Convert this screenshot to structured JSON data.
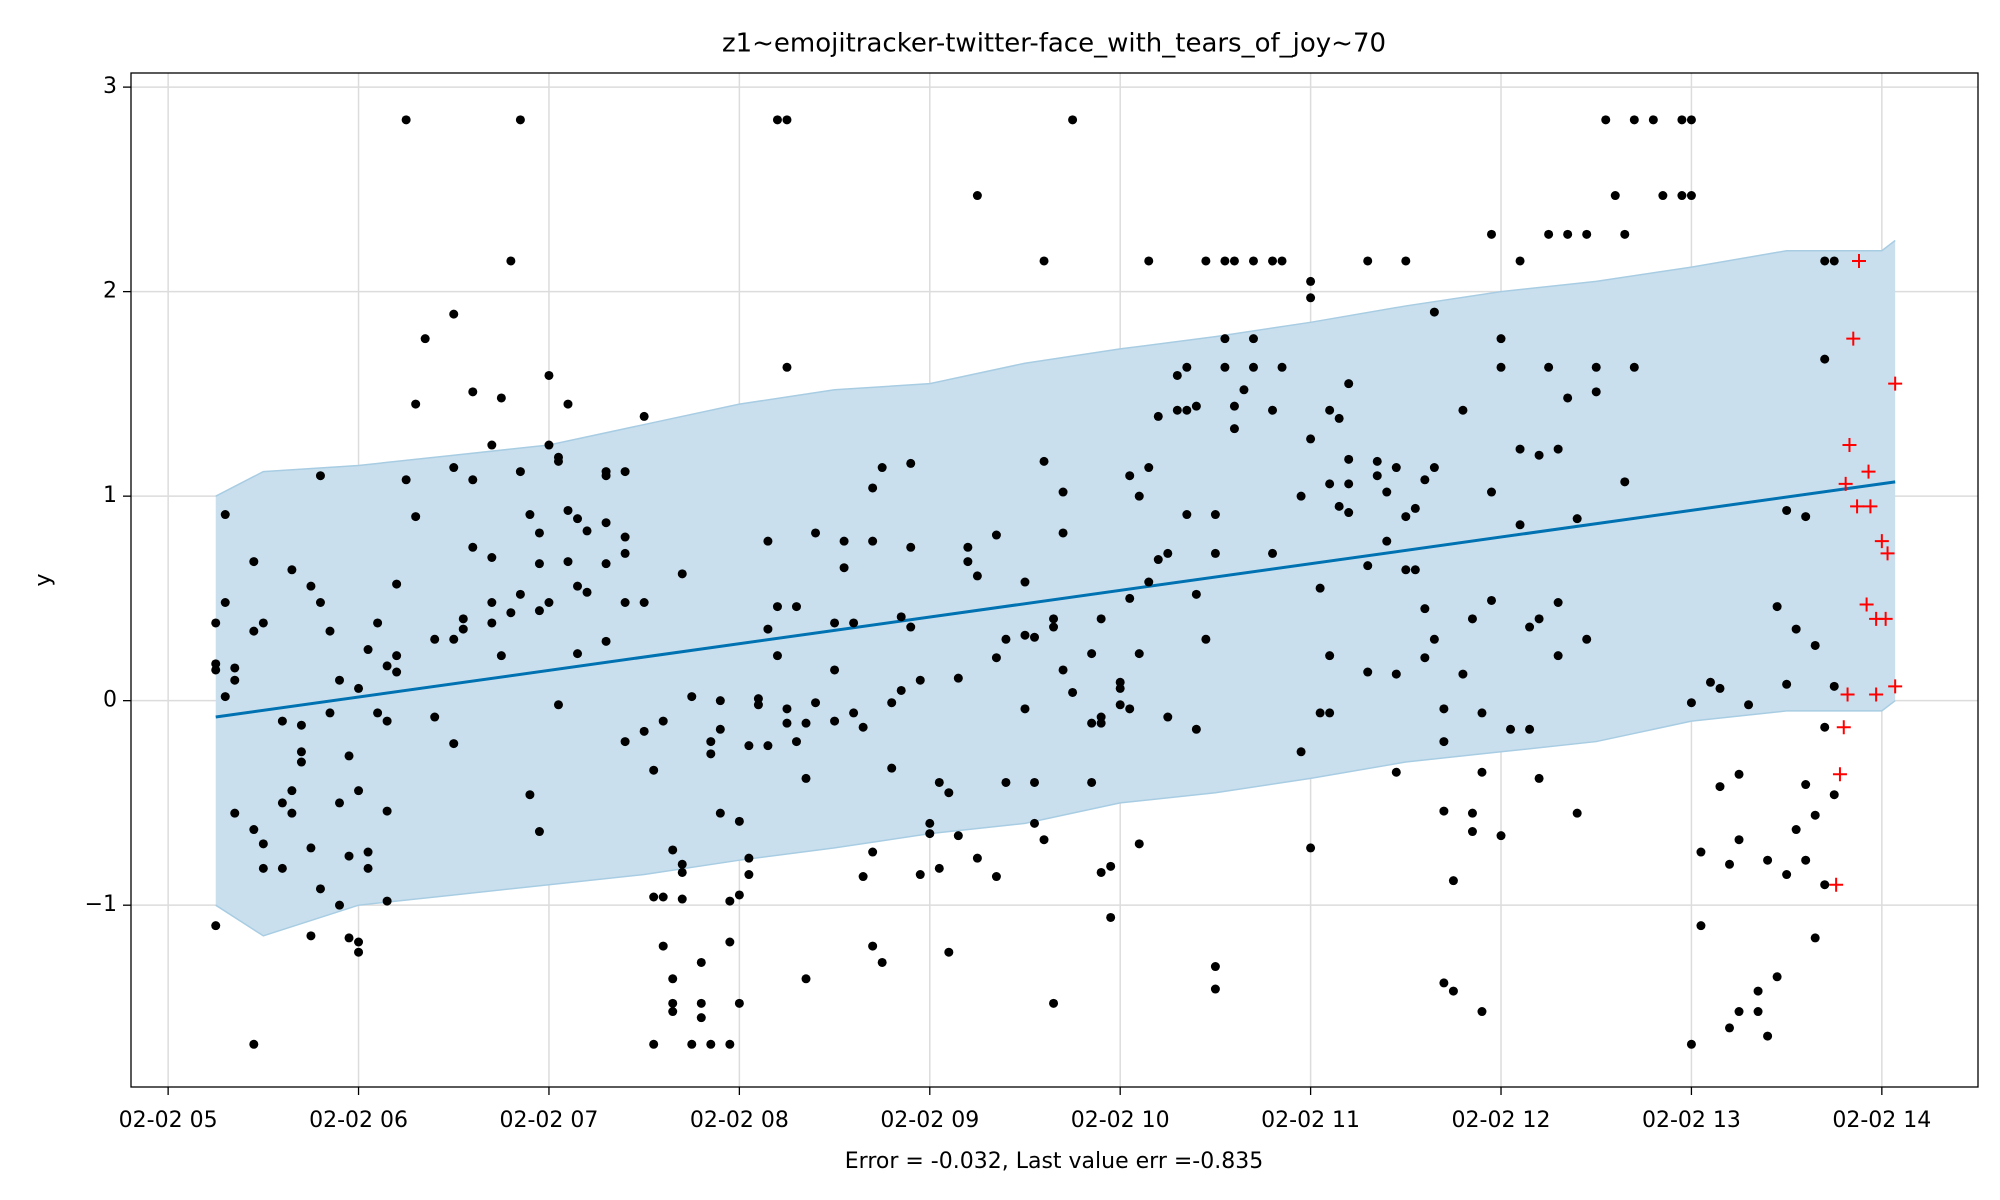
{
  "chart_data": {
    "type": "scatter",
    "title": "z1~emojitracker-twitter-face_with_tears_of_joy~70",
    "x_label": "Error = -0.032, Last value err =-0.835",
    "y_label": "y",
    "xlim": [
      4.805,
      14.505
    ],
    "ylim": [
      -1.889,
      3.069
    ],
    "xticks": [
      {
        "value": 5,
        "label": "02-02 05"
      },
      {
        "value": 6,
        "label": "02-02 06"
      },
      {
        "value": 7,
        "label": "02-02 07"
      },
      {
        "value": 8,
        "label": "02-02 08"
      },
      {
        "value": 9,
        "label": "02-02 09"
      },
      {
        "value": 10,
        "label": "02-02 10"
      },
      {
        "value": 11,
        "label": "02-02 11"
      },
      {
        "value": 12,
        "label": "02-02 12"
      },
      {
        "value": 13,
        "label": "02-02 13"
      },
      {
        "value": 14,
        "label": "02-02 14"
      }
    ],
    "yticks": [
      {
        "value": -1,
        "label": "−1"
      },
      0,
      1,
      2,
      3
    ],
    "grid": true,
    "band": {
      "color": "#c9dfee",
      "edge_color": "#a8cde3",
      "x": [
        5.25,
        5.5,
        6,
        6.5,
        7,
        7.5,
        8,
        8.5,
        9,
        9.5,
        10,
        10.5,
        11,
        11.5,
        12,
        12.5,
        13,
        13.5,
        14,
        14.07
      ],
      "upper": [
        1.0,
        1.12,
        1.15,
        1.2,
        1.25,
        1.35,
        1.45,
        1.52,
        1.55,
        1.65,
        1.72,
        1.78,
        1.85,
        1.93,
        2.0,
        2.05,
        2.12,
        2.2,
        2.2,
        2.25
      ],
      "lower": [
        -1.0,
        -1.15,
        -1.0,
        -0.95,
        -0.9,
        -0.85,
        -0.78,
        -0.72,
        -0.65,
        -0.6,
        -0.5,
        -0.45,
        -0.38,
        -0.3,
        -0.25,
        -0.2,
        -0.1,
        -0.05,
        -0.05,
        0.0
      ]
    },
    "forecast": {
      "color": "#0072b2",
      "x": [
        5.25,
        14.07
      ],
      "values": [
        -0.08,
        1.07
      ]
    },
    "observed": {
      "color": "#000000",
      "x": [
        5.25,
        5.25,
        5.25,
        5.25,
        5.3,
        5.3,
        5.3,
        5.35,
        5.35,
        5.35,
        5.45,
        5.45,
        5.45,
        5.45,
        5.5,
        5.5,
        5.5,
        5.6,
        5.6,
        5.6,
        5.65,
        5.65,
        5.65,
        5.7,
        5.7,
        5.7,
        5.75,
        5.75,
        5.75,
        5.8,
        5.8,
        5.8,
        5.85,
        5.85,
        5.9,
        5.9,
        5.9,
        5.95,
        5.95,
        5.95,
        6.0,
        6.0,
        6.0,
        6.0,
        6.05,
        6.05,
        6.05,
        6.1,
        6.1,
        6.15,
        6.15,
        6.15,
        6.15,
        6.2,
        6.2,
        6.2,
        6.25,
        6.25,
        6.3,
        6.3,
        6.35,
        6.4,
        6.4,
        6.5,
        6.5,
        6.5,
        6.5,
        6.55,
        6.55,
        6.6,
        6.6,
        6.6,
        6.7,
        6.7,
        6.7,
        6.7,
        6.75,
        6.75,
        6.8,
        6.8,
        6.85,
        6.85,
        6.85,
        6.9,
        6.9,
        6.95,
        6.95,
        6.95,
        6.95,
        7.0,
        7.0,
        7.0,
        7.05,
        7.05,
        7.05,
        7.1,
        7.1,
        7.1,
        7.15,
        7.15,
        7.15,
        7.2,
        7.2,
        7.3,
        7.3,
        7.3,
        7.3,
        7.3,
        7.4,
        7.4,
        7.4,
        7.4,
        7.4,
        7.5,
        7.5,
        7.5,
        7.55,
        7.55,
        7.55,
        7.6,
        7.6,
        7.6,
        7.65,
        7.65,
        7.65,
        7.65,
        7.7,
        7.7,
        7.7,
        7.7,
        7.75,
        7.75,
        7.8,
        7.8,
        7.8,
        7.85,
        7.85,
        7.85,
        7.9,
        7.9,
        7.9,
        7.95,
        7.95,
        7.95,
        8.0,
        8.0,
        8.0,
        8.05,
        8.05,
        8.05,
        8.1,
        8.1,
        8.15,
        8.15,
        8.15,
        8.2,
        8.2,
        8.2,
        8.25,
        8.25,
        8.25,
        8.25,
        8.3,
        8.3,
        8.35,
        8.35,
        8.35,
        8.4,
        8.4,
        8.5,
        8.5,
        8.5,
        8.55,
        8.55,
        8.6,
        8.6,
        8.65,
        8.65,
        8.7,
        8.7,
        8.7,
        8.7,
        8.75,
        8.75,
        8.8,
        8.8,
        8.85,
        8.85,
        8.9,
        8.9,
        8.9,
        8.95,
        8.95,
        9.0,
        9.0,
        9.05,
        9.05,
        9.1,
        9.1,
        9.15,
        9.15,
        9.2,
        9.2,
        9.25,
        9.25,
        9.25,
        9.35,
        9.35,
        9.35,
        9.4,
        9.4,
        9.5,
        9.5,
        9.5,
        9.55,
        9.55,
        9.55,
        9.6,
        9.6,
        9.6,
        9.65,
        9.65,
        9.65,
        9.7,
        9.7,
        9.7,
        9.75,
        9.75,
        9.85,
        9.85,
        9.85,
        9.9,
        9.9,
        9.9,
        9.9,
        9.95,
        9.95,
        10.0,
        10.0,
        10.0,
        10.05,
        10.05,
        10.05,
        10.1,
        10.1,
        10.1,
        10.15,
        10.15,
        10.15,
        10.2,
        10.2,
        10.25,
        10.25,
        10.3,
        10.3,
        10.35,
        10.35,
        10.35,
        10.4,
        10.4,
        10.4,
        10.45,
        10.45,
        10.5,
        10.5,
        10.5,
        10.5,
        10.55,
        10.55,
        10.55,
        10.6,
        10.6,
        10.6,
        10.65,
        10.7,
        10.7,
        10.7,
        10.8,
        10.8,
        10.8,
        10.85,
        10.85,
        10.95,
        10.95,
        11.0,
        11.0,
        11.0,
        11.0,
        11.05,
        11.05,
        11.1,
        11.1,
        11.1,
        11.1,
        11.15,
        11.15,
        11.2,
        11.2,
        11.2,
        11.2,
        11.3,
        11.3,
        11.3,
        11.35,
        11.35,
        11.4,
        11.4,
        11.45,
        11.45,
        11.45,
        11.5,
        11.5,
        11.5,
        11.55,
        11.55,
        11.6,
        11.6,
        11.6,
        11.65,
        11.65,
        11.65,
        11.7,
        11.7,
        11.7,
        11.7,
        11.75,
        11.75,
        11.8,
        11.8,
        11.85,
        11.85,
        11.85,
        11.9,
        11.9,
        11.9,
        11.95,
        11.95,
        11.95,
        12.0,
        12.0,
        12.0,
        12.05,
        12.1,
        12.1,
        12.1,
        12.15,
        12.15,
        12.2,
        12.2,
        12.2,
        12.25,
        12.25,
        12.3,
        12.3,
        12.3,
        12.35,
        12.35,
        12.4,
        12.4,
        12.45,
        12.45,
        12.5,
        12.5,
        12.55,
        12.6,
        12.65,
        12.65,
        12.7,
        12.7,
        12.8,
        12.85,
        12.95,
        12.95,
        13.0,
        13.0,
        13.0,
        13.0,
        13.05,
        13.05,
        13.1,
        13.15,
        13.15,
        13.2,
        13.2,
        13.25,
        13.25,
        13.25,
        13.3,
        13.35,
        13.35,
        13.4,
        13.4,
        13.45,
        13.45,
        13.5,
        13.5,
        13.5,
        13.55,
        13.55,
        13.6,
        13.6,
        13.6,
        13.65,
        13.65,
        13.65,
        13.7,
        13.7,
        13.7,
        13.7,
        13.75,
        13.75,
        13.75
      ],
      "values": [
        0.38,
        0.15,
        -1.1,
        0.18,
        0.48,
        0.02,
        0.91,
        0.16,
        -0.55,
        0.1,
        -0.63,
        0.68,
        0.34,
        -1.68,
        0.38,
        -0.82,
        -0.7,
        -0.1,
        -0.82,
        -0.5,
        0.64,
        -0.55,
        -0.44,
        -0.3,
        -0.25,
        -0.12,
        0.56,
        -0.72,
        -1.15,
        -0.92,
        1.1,
        0.48,
        -0.06,
        0.34,
        -1.0,
        -0.5,
        0.1,
        -0.27,
        -1.16,
        -0.76,
        -0.44,
        -1.18,
        -1.23,
        0.06,
        -0.82,
        -0.74,
        0.25,
        0.38,
        -0.06,
        -0.1,
        -0.98,
        -0.54,
        0.17,
        0.57,
        0.14,
        0.22,
        2.84,
        1.08,
        0.9,
        1.45,
        1.77,
        0.3,
        -0.08,
        1.89,
        0.3,
        1.14,
        -0.21,
        0.4,
        0.35,
        1.51,
        1.08,
        0.75,
        0.38,
        1.25,
        0.48,
        0.7,
        1.48,
        0.22,
        2.15,
        0.43,
        1.12,
        0.52,
        2.84,
        -0.46,
        0.91,
        0.44,
        -0.64,
        0.82,
        0.67,
        1.59,
        1.25,
        0.48,
        -0.02,
        1.19,
        1.17,
        0.93,
        1.45,
        0.68,
        0.56,
        0.89,
        0.23,
        0.53,
        0.83,
        1.12,
        0.87,
        0.67,
        1.1,
        0.29,
        0.8,
        -0.2,
        1.12,
        0.48,
        0.72,
        1.39,
        0.48,
        -0.15,
        -0.96,
        -1.68,
        -0.34,
        -0.1,
        -0.96,
        -1.2,
        -1.36,
        -0.73,
        -1.48,
        -1.52,
        -0.97,
        0.62,
        -0.8,
        -0.84,
        0.02,
        -1.68,
        -1.28,
        -1.48,
        -1.55,
        -0.26,
        -1.68,
        -0.2,
        -0.55,
        0.0,
        -0.14,
        -0.98,
        -1.18,
        -1.68,
        -1.48,
        -0.59,
        -0.95,
        -0.77,
        -0.22,
        -0.85,
        -0.02,
        0.01,
        0.35,
        -0.22,
        0.78,
        2.84,
        0.22,
        0.46,
        -0.11,
        2.84,
        1.63,
        -0.04,
        -0.2,
        0.46,
        -1.36,
        -0.38,
        -0.11,
        -0.01,
        0.82,
        0.38,
        0.15,
        -0.1,
        0.78,
        0.65,
        0.38,
        -0.06,
        -0.86,
        -0.13,
        0.78,
        -1.2,
        -0.74,
        1.04,
        -1.28,
        1.14,
        -0.33,
        -0.01,
        0.41,
        0.05,
        1.16,
        0.75,
        0.36,
        -0.85,
        0.1,
        -0.6,
        -0.65,
        -0.4,
        -0.82,
        -1.23,
        -0.45,
        0.11,
        -0.66,
        0.75,
        0.68,
        2.47,
        -0.77,
        0.61,
        0.81,
        0.21,
        -0.86,
        0.3,
        -0.4,
        0.32,
        -0.04,
        0.58,
        0.31,
        -0.4,
        -0.6,
        2.15,
        -0.68,
        1.17,
        -1.48,
        0.36,
        0.4,
        0.82,
        1.02,
        0.15,
        2.84,
        0.04,
        -0.11,
        -0.4,
        0.23,
        0.4,
        -0.08,
        -0.84,
        -0.11,
        -0.81,
        -1.06,
        0.06,
        0.09,
        -0.02,
        0.5,
        -0.04,
        1.1,
        0.23,
        -0.7,
        1.0,
        0.58,
        2.15,
        1.14,
        1.39,
        0.69,
        -0.08,
        0.72,
        1.42,
        1.59,
        0.91,
        1.63,
        1.42,
        1.44,
        -0.14,
        0.52,
        2.15,
        0.3,
        -1.41,
        -1.3,
        0.72,
        0.91,
        1.77,
        1.63,
        2.15,
        1.44,
        1.33,
        2.15,
        1.52,
        1.77,
        2.15,
        1.63,
        2.15,
        1.42,
        0.72,
        1.63,
        2.15,
        1.0,
        -0.25,
        -0.72,
        1.28,
        2.05,
        1.97,
        -0.06,
        0.55,
        1.42,
        -0.06,
        1.06,
        0.22,
        1.38,
        0.95,
        1.18,
        1.55,
        0.92,
        1.06,
        2.15,
        0.66,
        0.14,
        1.17,
        1.1,
        1.02,
        0.78,
        -0.35,
        1.14,
        0.13,
        0.64,
        0.9,
        2.15,
        0.64,
        0.94,
        0.45,
        1.08,
        0.21,
        0.3,
        1.14,
        1.9,
        -0.04,
        -1.38,
        -0.2,
        -0.54,
        -0.88,
        -1.42,
        1.42,
        0.13,
        -0.64,
        -0.55,
        0.4,
        -1.52,
        -0.35,
        -0.06,
        2.28,
        0.49,
        1.02,
        1.77,
        -0.66,
        1.63,
        -0.14,
        2.15,
        1.23,
        0.86,
        0.36,
        -0.14,
        1.2,
        0.4,
        -0.38,
        1.63,
        2.28,
        0.48,
        0.22,
        1.23,
        2.28,
        1.48,
        -0.55,
        0.89,
        2.28,
        0.3,
        1.63,
        1.51,
        2.84,
        2.47,
        1.07,
        2.28,
        2.84,
        1.63,
        2.84,
        2.47,
        2.84,
        2.47,
        -1.68,
        -0.01,
        2.84,
        2.47,
        -0.74,
        -1.1,
        0.09,
        -0.42,
        0.06,
        -1.6,
        -0.8,
        -0.36,
        -0.68,
        -1.52,
        -0.02,
        -1.42,
        -1.52,
        -1.64,
        -0.78,
        -1.35,
        0.46,
        -0.85,
        0.93,
        0.08,
        -0.63,
        0.35,
        -0.41,
        -0.78,
        0.9,
        -1.16,
        -0.56,
        0.27,
        -0.9,
        -0.13,
        1.67,
        2.15,
        -0.46,
        0.07,
        2.15
      ]
    },
    "test": {
      "color": "#ff0000",
      "x": [
        13.88,
        13.85,
        14.07,
        13.83,
        13.93,
        13.81,
        13.87,
        13.94,
        14.0,
        14.03,
        13.92,
        13.97,
        14.02,
        14.07,
        13.82,
        13.97,
        13.8,
        13.78,
        13.76
      ],
      "values": [
        2.15,
        1.77,
        1.55,
        1.25,
        1.12,
        1.06,
        0.95,
        0.95,
        0.78,
        0.72,
        0.47,
        0.4,
        0.4,
        0.07,
        0.03,
        0.03,
        -0.13,
        -0.36,
        -0.9
      ]
    }
  }
}
